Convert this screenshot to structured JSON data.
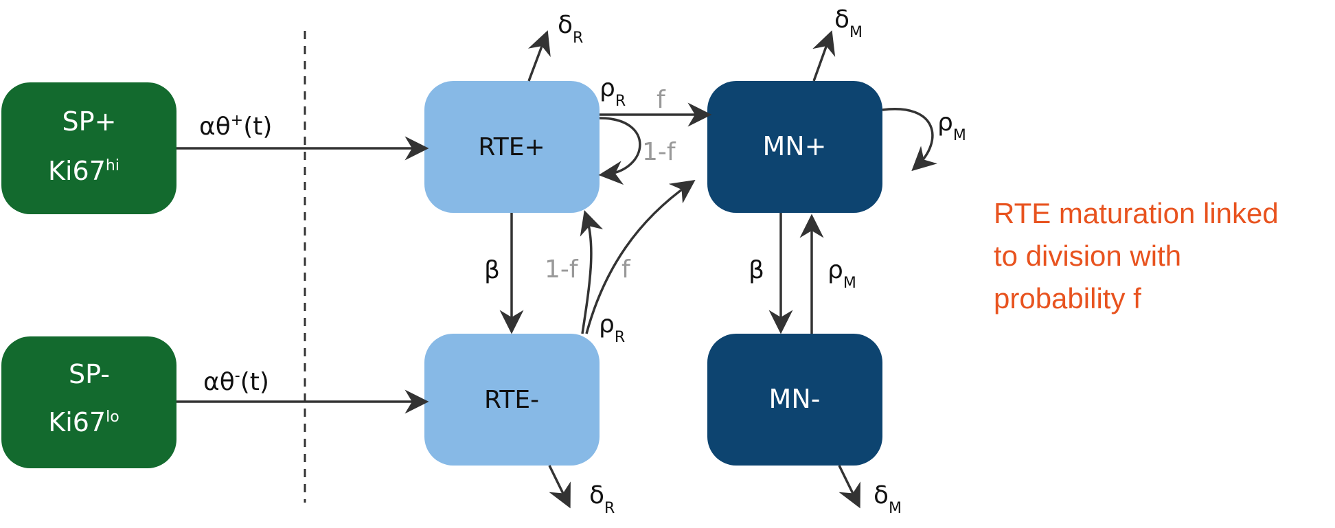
{
  "colors": {
    "sp_green": "#136a2e",
    "rte_blue": "#87b9e6",
    "mn_navy": "#0d4470",
    "arrow": "#333333",
    "grey_label": "#999999",
    "note_orange": "#e8531f"
  },
  "nodes": {
    "sp_plus": {
      "line1": "SP+",
      "line2_base": "Ki67",
      "line2_sup": "hi"
    },
    "sp_minus": {
      "line1": "SP-",
      "line2_base": "Ki67",
      "line2_sup": "lo"
    },
    "rte_plus": {
      "label": "RTE+"
    },
    "rte_minus": {
      "label": "RTE-"
    },
    "mn_plus": {
      "label": "MN+"
    },
    "mn_minus": {
      "label": "MN-"
    }
  },
  "edges": {
    "influx_plus": {
      "base": "αθ",
      "sup": "+",
      "tail": "(t)"
    },
    "influx_minus": {
      "base": "αθ",
      "sup": "-",
      "tail": "(t)"
    },
    "delta_r": {
      "base": "δ",
      "sub": "R"
    },
    "delta_m": {
      "base": "δ",
      "sub": "M"
    },
    "rho_r": {
      "base": "ρ",
      "sub": "R"
    },
    "rho_m": {
      "base": "ρ",
      "sub": "M"
    },
    "beta": "β",
    "f": "f",
    "one_minus_f": "1-f"
  },
  "note": {
    "lines": [
      "RTE maturation linked",
      "to division with",
      "probability f"
    ]
  }
}
